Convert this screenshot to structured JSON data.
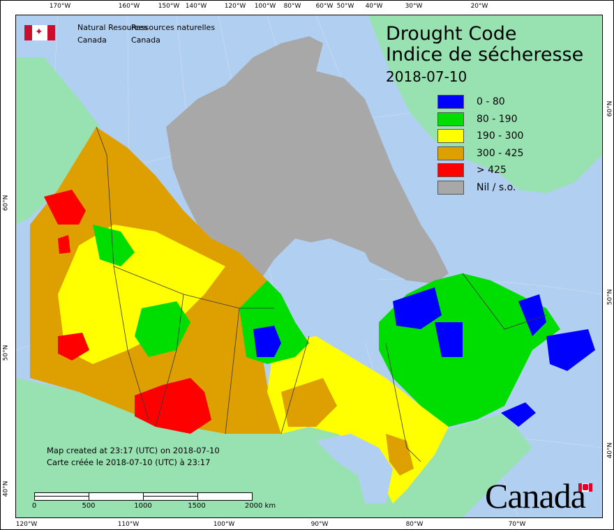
{
  "map": {
    "title_en": "Drought Code",
    "title_fr": "Indice de sécheresse",
    "date": "2018-07-10",
    "agency": {
      "en_line1": "Natural Resources",
      "en_line2": "Canada",
      "fr_line1": "Ressources naturelles",
      "fr_line2": "Canada"
    },
    "legend": [
      {
        "label": "0 - 80",
        "color": "#0000ff"
      },
      {
        "label": "80 - 190",
        "color": "#00dd00"
      },
      {
        "label": "190 - 300",
        "color": "#ffff00"
      },
      {
        "label": "300 - 425",
        "color": "#dda000"
      },
      {
        "label": "> 425",
        "color": "#ff0000"
      },
      {
        "label": "Nil / s.o.",
        "color": "#a8a8a8"
      }
    ],
    "credit_en": "Map created at 23:17 (UTC) on 2018-07-10",
    "credit_fr": "Carte créée le 2018-07-10 (UTC) à 23:17",
    "scale_labels": [
      "0",
      "500",
      "1000",
      "1500",
      "2000  km"
    ],
    "wordmark": "Canada",
    "top_ticks": [
      "170°W",
      "160°W",
      "150°W",
      "140°W",
      "120°W",
      "100°W",
      "80°W",
      "60°W",
      "50°W",
      "40°W",
      "30°W",
      "20°W"
    ],
    "bottom_ticks": [
      "120°W",
      "110°W",
      "100°W",
      "90°W",
      "80°W",
      "70°W"
    ],
    "left_ticks": [
      "60°N",
      "50°N",
      "40°N"
    ],
    "right_ticks": [
      "60°N",
      "50°N",
      "40°N"
    ],
    "colors": {
      "ocean": "#b1cff0",
      "land": "#98e2b2"
    }
  }
}
